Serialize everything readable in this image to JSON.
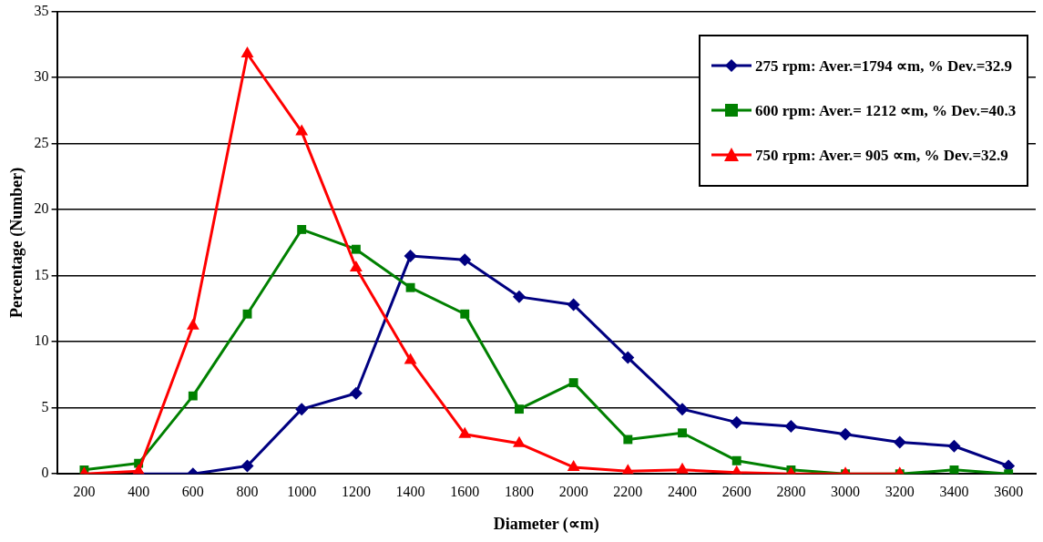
{
  "chart_data": {
    "type": "line",
    "xlabel": "Diameter (∝m)",
    "ylabel": "Percentage (Number)",
    "categories": [
      "200",
      "400",
      "600",
      "800",
      "1000",
      "1200",
      "1400",
      "1600",
      "1800",
      "2000",
      "2200",
      "2400",
      "2600",
      "2800",
      "3000",
      "3200",
      "3400",
      "3600"
    ],
    "ylim": [
      0,
      35
    ],
    "yticks": [
      0,
      5,
      10,
      15,
      20,
      25,
      30,
      35
    ],
    "grid": "y",
    "legend": "top right",
    "line_style": "solid",
    "series": [
      {
        "name": "275 rpm: Aver.=1794 ∝m, % Dev.=32.9",
        "color": "#000080",
        "marker": "diamond",
        "values": [
          null,
          0,
          0,
          0.6,
          4.9,
          6.1,
          16.5,
          16.2,
          13.4,
          12.8,
          8.8,
          4.9,
          3.9,
          3.6,
          3.0,
          2.4,
          2.1,
          0.6
        ]
      },
      {
        "name": "600 rpm: Aver.= 1212 ∝m, % Dev.=40.3",
        "color": "#008000",
        "marker": "square",
        "values": [
          0.3,
          0.8,
          5.9,
          12.1,
          18.5,
          17.0,
          14.1,
          12.1,
          4.9,
          6.9,
          2.6,
          3.1,
          1.0,
          0.3,
          0,
          0,
          0.3,
          0
        ]
      },
      {
        "name": "750 rpm: Aver.= 905 ∝m, % Dev.=32.9",
        "color": "#ff0000",
        "marker": "triangle",
        "values": [
          0,
          0.2,
          11.2,
          31.8,
          25.9,
          15.6,
          8.6,
          3.0,
          2.3,
          0.5,
          0.2,
          0.3,
          0.1,
          0,
          0,
          0,
          null,
          null
        ]
      }
    ]
  }
}
